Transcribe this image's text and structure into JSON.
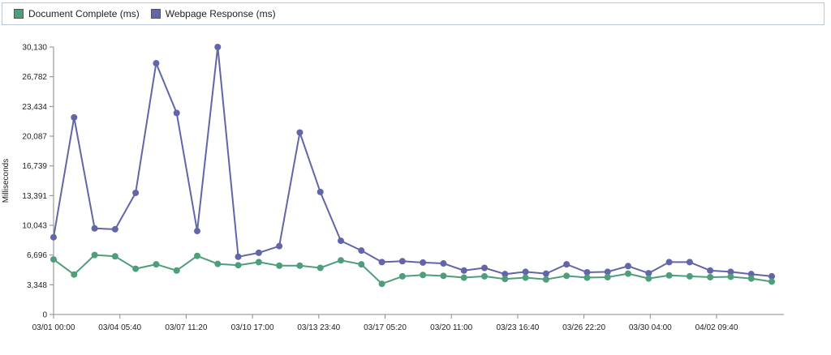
{
  "legend": [
    {
      "label": "Document Complete (ms)",
      "color": "#4e9e7b"
    },
    {
      "label": "Webpage Response (ms)",
      "color": "#6265a8"
    }
  ],
  "chart_data": {
    "type": "line",
    "ylabel": "Milliseconds",
    "xlabel": "",
    "title": "",
    "ylim": [
      0,
      30130
    ],
    "y_ticks": [
      "0",
      "3,348",
      "6,696",
      "10,043",
      "13,391",
      "16,739",
      "20,087",
      "23,434",
      "26,782",
      "30,130"
    ],
    "x_ticks": [
      "03/01 00:00",
      "03/04 05:40",
      "03/07 11:20",
      "03/10 17:00",
      "03/13 23:40",
      "03/17 05:20",
      "03/20 11:00",
      "03/23 16:40",
      "03/26 22:20",
      "03/30 04:00",
      "04/02 09:40"
    ],
    "grid": false,
    "legend_position": "top",
    "series": [
      {
        "name": "Document Complete (ms)",
        "color": "#4e9e7b",
        "values": [
          6200,
          4500,
          6700,
          6550,
          5150,
          5650,
          4950,
          6600,
          5700,
          5550,
          5900,
          5500,
          5500,
          5250,
          6100,
          5650,
          3450,
          4300,
          4450,
          4350,
          4150,
          4300,
          4000,
          4150,
          3950,
          4350,
          4150,
          4200,
          4600,
          4050,
          4400,
          4300,
          4200,
          4250,
          4050,
          3700
        ]
      },
      {
        "name": "Webpage Response (ms)",
        "color": "#6265a8",
        "values": [
          8700,
          22200,
          9700,
          9600,
          13700,
          28300,
          22700,
          9400,
          30130,
          6500,
          6950,
          7700,
          20500,
          13800,
          8300,
          7200,
          5900,
          6000,
          5850,
          5750,
          4950,
          5250,
          4550,
          4800,
          4600,
          5650,
          4750,
          4800,
          5450,
          4650,
          5900,
          5900,
          4950,
          4800,
          4550,
          4300
        ]
      }
    ]
  }
}
